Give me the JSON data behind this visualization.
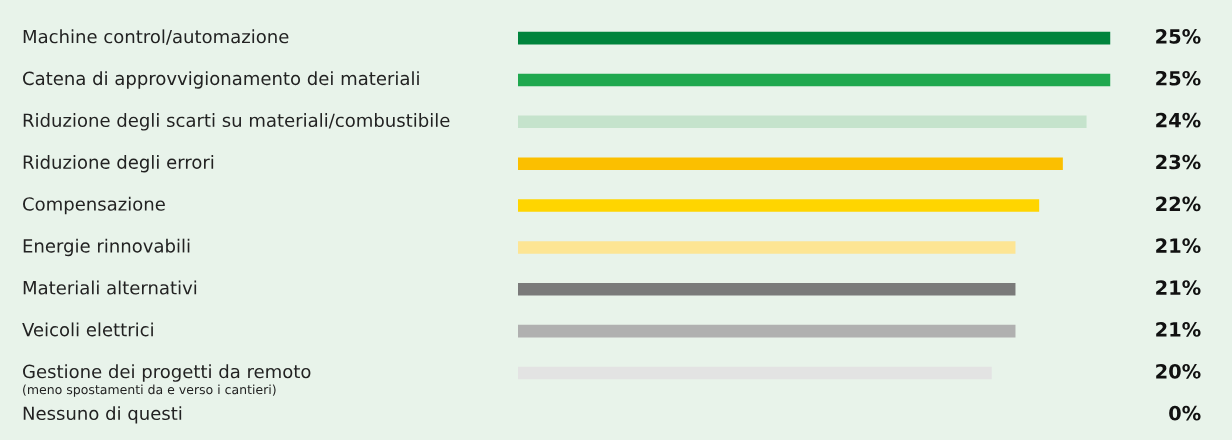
{
  "chart_data": {
    "type": "bar",
    "orientation": "horizontal",
    "categories": [
      "Machine control/automazione",
      "Catena di approvvigionamento dei materiali",
      "Riduzione degli scarti su materiali/combustibile",
      "Riduzione degli errori",
      "Compensazione",
      "Energie rinnovabili",
      "Materiali alternativi",
      "Veicoli elettrici",
      "Gestione dei progetti da remoto\n(meno spostamenti da e verso i cantieri)",
      "Nessuno di questi"
    ],
    "values": [
      25,
      25,
      24,
      23,
      22,
      21,
      21,
      21,
      20,
      0
    ],
    "colors": [
      "#00843d",
      "#1fa84f",
      "#c5e3cc",
      "#fbbf00",
      "#ffd500",
      "#fde594",
      "#7a7a7a",
      "#b0b0b0",
      "#e3e3e3",
      "#e3e3e3"
    ],
    "value_labels": [
      "25%",
      "25%",
      "24%",
      "23%",
      "22%",
      "21%",
      "21%",
      "21%",
      "20%",
      "0%"
    ],
    "tick_labels": false
  }
}
